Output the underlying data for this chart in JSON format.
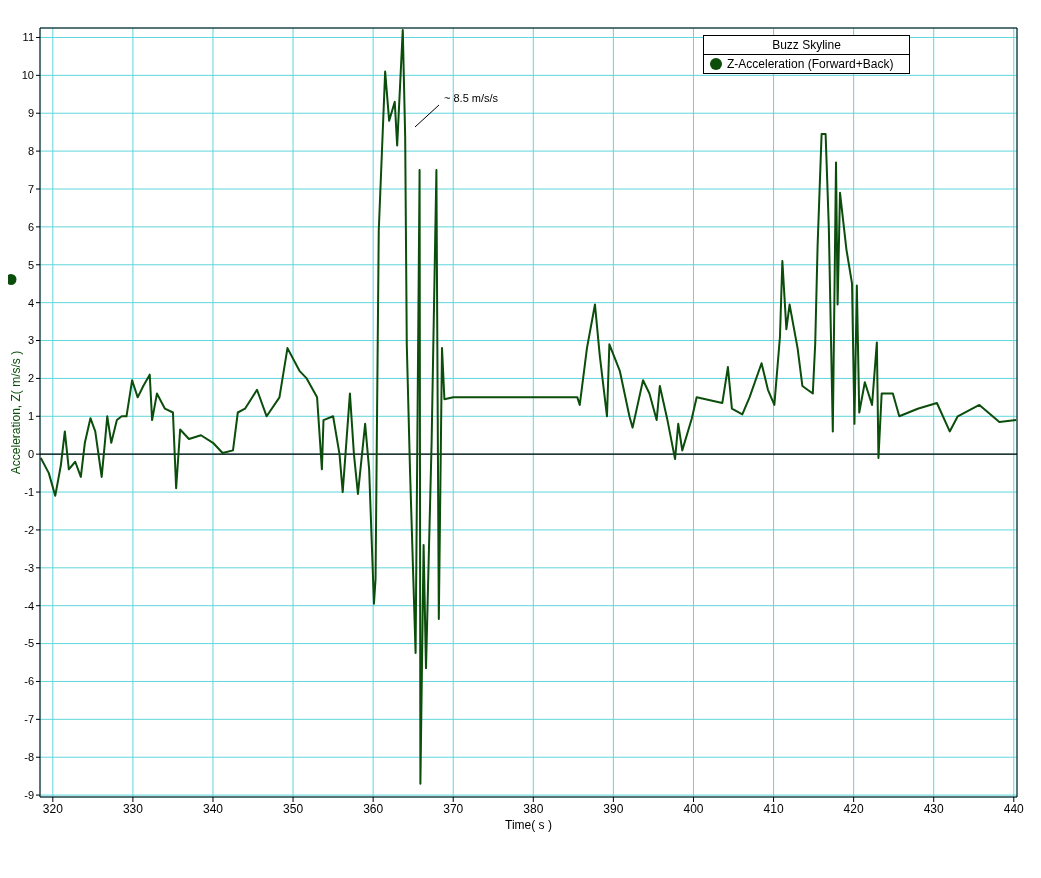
{
  "chart_data": {
    "type": "line",
    "xlabel": "Time( s )",
    "ylabel": "Acceleration, Z( m/s/s )",
    "legend_title": "Buzz Skyline",
    "legend": "top right",
    "grid": true,
    "xlim": [
      318.4,
      440.4
    ],
    "xticks": [
      320,
      330,
      340,
      350,
      360,
      370,
      380,
      390,
      400,
      410,
      420,
      430,
      440
    ],
    "ylim": [
      -9.05,
      11.25
    ],
    "yticks": [
      -9,
      -8,
      -7,
      -6,
      -5,
      -4,
      -3,
      -2,
      -1,
      0,
      1,
      2,
      3,
      4,
      5,
      6,
      7,
      8,
      9,
      10,
      11
    ],
    "ref_lines": [
      {
        "axis": "y",
        "value": 0,
        "color": "#000000"
      }
    ],
    "annotations": [
      "~ 8.5 m/s/s"
    ],
    "series": [
      {
        "name": "Z-Acceleration (Forward+Back)",
        "color": "#0b4d0b",
        "x": [
          318.5,
          319.5,
          320.3,
          321,
          321.5,
          322,
          322.8,
          323.5,
          324,
          324.7,
          325.3,
          326.1,
          326.5,
          326.8,
          327.3,
          328,
          328.6,
          329.2,
          329.9,
          330.6,
          331.3,
          332.1,
          332.4,
          333,
          334,
          335,
          335.4,
          335.9,
          337,
          338.5,
          340,
          341.2,
          342.5,
          343.1,
          344,
          345.5,
          346.7,
          348.3,
          349.3,
          350.8,
          351.7,
          353,
          353.6,
          353.8,
          355,
          355.8,
          356.2,
          357.1,
          357.6,
          358.1,
          359,
          359.5,
          360.1,
          360.3,
          360.7,
          361.5,
          362,
          362.7,
          363,
          363.7,
          364,
          364.2,
          364.6,
          365.3,
          365.8,
          365.9,
          366.3,
          366.6,
          367.3,
          367.9,
          368.2,
          368.6,
          368.9,
          370,
          375,
          380,
          385.5,
          385.8,
          386.7,
          387.7,
          388.3,
          389.2,
          389.5,
          390.8,
          392,
          392.4,
          393.7,
          394.5,
          395.4,
          395.8,
          396.7,
          397.7,
          398.1,
          398.6,
          399.8,
          400.4,
          403.6,
          404.3,
          404.8,
          406.1,
          407,
          408.5,
          409.3,
          410.1,
          410.8,
          411.1,
          411.6,
          412,
          413,
          413.6,
          414.9,
          415.2,
          415.5,
          416,
          416.5,
          416.9,
          417.4,
          417.8,
          418,
          418.3,
          419.1,
          419.8,
          420.1,
          420.4,
          420.7,
          421.4,
          422.3,
          422.9,
          423.1,
          423.5,
          424.9,
          425.7,
          428,
          430.4,
          432,
          433,
          435.7,
          438.2,
          440.3
        ],
        "values": [
          -0.1,
          -0.5,
          -1.1,
          -0.3,
          0.6,
          -0.4,
          -0.2,
          -0.6,
          0.3,
          0.95,
          0.6,
          -0.6,
          0.3,
          1.0,
          0.3,
          0.9,
          1.0,
          1.0,
          1.95,
          1.5,
          1.8,
          2.1,
          0.9,
          1.6,
          1.2,
          1.1,
          -0.9,
          0.65,
          0.4,
          0.5,
          0.3,
          0.03,
          0.1,
          1.1,
          1.2,
          1.7,
          1.0,
          1.5,
          2.8,
          2.2,
          2.0,
          1.5,
          -0.4,
          0.9,
          1.0,
          0.0,
          -1.0,
          1.6,
          0.0,
          -1.05,
          0.8,
          -0.4,
          -3.95,
          -3.3,
          5.9,
          10.1,
          8.8,
          9.3,
          8.15,
          11.2,
          8.4,
          2.9,
          -0.4,
          -5.25,
          7.5,
          -8.7,
          -2.4,
          -5.65,
          0.3,
          7.5,
          -4.35,
          2.8,
          1.45,
          1.5,
          1.5,
          1.5,
          1.5,
          1.3,
          2.8,
          3.95,
          2.6,
          1.0,
          2.9,
          2.2,
          1.0,
          0.7,
          1.95,
          1.6,
          0.9,
          1.8,
          0.95,
          -0.13,
          0.8,
          0.1,
          0.95,
          1.5,
          1.35,
          2.3,
          1.2,
          1.05,
          1.5,
          2.4,
          1.7,
          1.3,
          3.1,
          5.1,
          3.3,
          3.95,
          2.8,
          1.8,
          1.6,
          2.9,
          5.5,
          8.45,
          8.45,
          6.0,
          0.6,
          7.7,
          3.95,
          6.9,
          5.4,
          4.5,
          0.8,
          4.45,
          1.1,
          1.9,
          1.3,
          2.95,
          -0.1,
          1.6,
          1.6,
          1.0,
          1.2,
          1.35,
          0.6,
          1.0,
          1.3,
          0.85,
          0.9
        ]
      }
    ]
  }
}
